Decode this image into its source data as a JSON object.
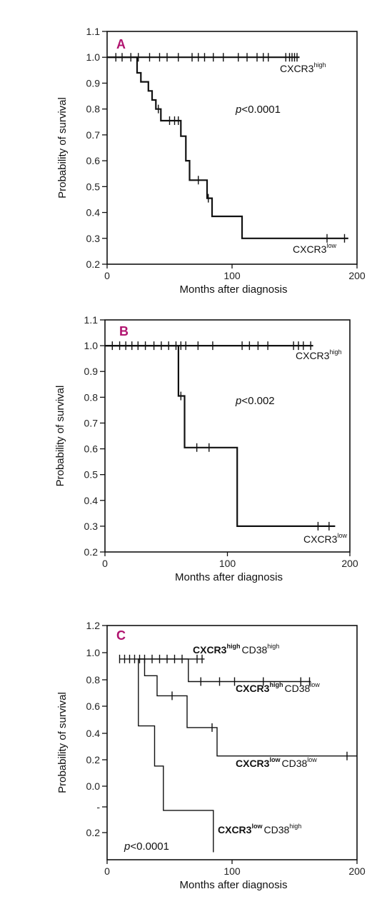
{
  "colors": {
    "letter": "#b0136f",
    "line": "#111111",
    "axis": "#111111"
  },
  "chart_data": [
    {
      "type": "line",
      "panel": "A",
      "xlabel": "Months after diagnosis",
      "ylabel": "Probability of survival",
      "xlim": [
        0,
        200
      ],
      "ylim": [
        0.2,
        1.1
      ],
      "xticks": [
        "0",
        "100",
        "200"
      ],
      "yticks": [
        "0.2",
        "0.3",
        "0.4",
        "0.5",
        "0.6",
        "0.7",
        "0.8",
        "0.9",
        "1.0",
        "1.1"
      ],
      "pvalue": {
        "italic": "p",
        "rest": "<0.0001"
      },
      "series": [
        {
          "label_main": "CXCR3",
          "label_sup": "high",
          "steps": [
            [
              0,
              1.0
            ],
            [
              154,
              1.0
            ]
          ],
          "censored": [
            [
              7,
              1.0
            ],
            [
              12,
              1.0
            ],
            [
              19,
              1.0
            ],
            [
              25,
              1.0
            ],
            [
              34,
              1.0
            ],
            [
              42,
              1.0
            ],
            [
              48,
              1.0
            ],
            [
              57,
              1.0
            ],
            [
              68,
              1.0
            ],
            [
              73,
              1.0
            ],
            [
              78,
              1.0
            ],
            [
              85,
              1.0
            ],
            [
              93,
              1.0
            ],
            [
              105,
              1.0
            ],
            [
              112,
              1.0
            ],
            [
              120,
              1.0
            ],
            [
              125,
              1.0
            ],
            [
              129,
              1.0
            ],
            [
              143,
              1.0
            ],
            [
              146,
              1.0
            ],
            [
              148,
              1.0
            ],
            [
              150,
              1.0
            ],
            [
              152,
              1.0
            ]
          ]
        },
        {
          "label_main": "CXCR3",
          "label_sup": "low",
          "steps": [
            [
              0,
              1.0
            ],
            [
              24,
              1.0
            ],
            [
              24,
              0.94
            ],
            [
              27,
              0.94
            ],
            [
              27,
              0.905
            ],
            [
              33,
              0.905
            ],
            [
              33,
              0.87
            ],
            [
              36,
              0.87
            ],
            [
              36,
              0.835
            ],
            [
              39,
              0.835
            ],
            [
              39,
              0.8
            ],
            [
              43,
              0.8
            ],
            [
              43,
              0.755
            ],
            [
              59,
              0.755
            ],
            [
              59,
              0.695
            ],
            [
              63,
              0.695
            ],
            [
              63,
              0.6
            ],
            [
              66,
              0.6
            ],
            [
              66,
              0.525
            ],
            [
              80,
              0.525
            ],
            [
              80,
              0.455
            ],
            [
              84,
              0.455
            ],
            [
              84,
              0.385
            ],
            [
              108,
              0.385
            ],
            [
              108,
              0.3
            ],
            [
              193,
              0.3
            ]
          ],
          "censored": [
            [
              41,
              0.8
            ],
            [
              50,
              0.755
            ],
            [
              54,
              0.755
            ],
            [
              57,
              0.755
            ],
            [
              73,
              0.525
            ],
            [
              81,
              0.455
            ],
            [
              176,
              0.3
            ],
            [
              190,
              0.3
            ]
          ]
        }
      ]
    },
    {
      "type": "line",
      "panel": "B",
      "xlabel": "Months after diagnosis",
      "ylabel": "Probability of survival",
      "xlim": [
        0,
        200
      ],
      "ylim": [
        0.2,
        1.1
      ],
      "xticks": [
        "0",
        "100",
        "200"
      ],
      "yticks": [
        "0.2",
        "0.3",
        "0.4",
        "0.5",
        "0.6",
        "0.7",
        "0.8",
        "0.9",
        "1.0",
        "1.1"
      ],
      "pvalue": {
        "italic": "p",
        "rest": "<0.002"
      },
      "series": [
        {
          "label_main": "CXCR3",
          "label_sup": "high",
          "steps": [
            [
              0,
              1.0
            ],
            [
              170,
              1.0
            ]
          ],
          "censored": [
            [
              6,
              1.0
            ],
            [
              12,
              1.0
            ],
            [
              17,
              1.0
            ],
            [
              22,
              1.0
            ],
            [
              27,
              1.0
            ],
            [
              33,
              1.0
            ],
            [
              40,
              1.0
            ],
            [
              46,
              1.0
            ],
            [
              52,
              1.0
            ],
            [
              58,
              1.0
            ],
            [
              62,
              1.0
            ],
            [
              66,
              1.0
            ],
            [
              76,
              1.0
            ],
            [
              88,
              1.0
            ],
            [
              112,
              1.0
            ],
            [
              118,
              1.0
            ],
            [
              125,
              1.0
            ],
            [
              133,
              1.0
            ],
            [
              154,
              1.0
            ],
            [
              158,
              1.0
            ],
            [
              162,
              1.0
            ],
            [
              168,
              1.0
            ]
          ]
        },
        {
          "label_main": "CXCR3",
          "label_sup": "low",
          "steps": [
            [
              0,
              1.0
            ],
            [
              60,
              1.0
            ],
            [
              60,
              0.805
            ],
            [
              65,
              0.805
            ],
            [
              65,
              0.605
            ],
            [
              108,
              0.605
            ],
            [
              108,
              0.3
            ],
            [
              188,
              0.3
            ]
          ],
          "censored": [
            [
              62,
              0.805
            ],
            [
              75,
              0.605
            ],
            [
              85,
              0.605
            ],
            [
              174,
              0.3
            ],
            [
              183,
              0.3
            ]
          ]
        }
      ]
    },
    {
      "type": "line",
      "panel": "C",
      "xlabel": "Months after diagnosis",
      "ylabel": "Probability of survival",
      "xlim": [
        0,
        200
      ],
      "ylim": [
        -0.2,
        1.2
      ],
      "xticks": [
        "0",
        "100",
        "200"
      ],
      "yticks": [
        "1.2",
        "1.0",
        "0.8",
        "0.6",
        "0.4",
        "0.2",
        "0.0",
        "-",
        "0.2"
      ],
      "pvalue": {
        "italic": "p",
        "rest": "<0.0001"
      },
      "series": [
        {
          "label_main": "CXCR3",
          "label_sup": "high",
          "label_second": "CD38",
          "label_second_sup": "high",
          "steps": [
            [
              10,
              1.0
            ],
            [
              78,
              1.0
            ]
          ],
          "censored": [
            [
              10,
              1.0
            ],
            [
              14,
              1.0
            ],
            [
              18,
              1.0
            ],
            [
              22,
              1.0
            ],
            [
              26,
              1.0
            ],
            [
              30,
              1.0
            ],
            [
              36,
              1.0
            ],
            [
              42,
              1.0
            ],
            [
              48,
              1.0
            ],
            [
              54,
              1.0
            ],
            [
              60,
              1.0
            ],
            [
              72,
              1.0
            ],
            [
              76,
              1.0
            ]
          ]
        },
        {
          "label_main": "CXCR3",
          "label_sup": "high",
          "label_second": "CD38",
          "label_second_sup": "low",
          "steps": [
            [
              25,
              1.0
            ],
            [
              65,
              1.0
            ],
            [
              65,
              0.865
            ],
            [
              163,
              0.865
            ]
          ],
          "censored": [
            [
              75,
              0.865
            ],
            [
              90,
              0.865
            ],
            [
              102,
              0.865
            ],
            [
              125,
              0.865
            ],
            [
              155,
              0.865
            ],
            [
              162,
              0.865
            ]
          ]
        },
        {
          "label_main": "CXCR3",
          "label_sup": "low",
          "label_second": "CD38",
          "label_second_sup": "low",
          "steps": [
            [
              25,
              1.0
            ],
            [
              30,
              1.0
            ],
            [
              30,
              0.9
            ],
            [
              40,
              0.9
            ],
            [
              40,
              0.78
            ],
            [
              64,
              0.78
            ],
            [
              64,
              0.59
            ],
            [
              88,
              0.59
            ],
            [
              88,
              0.42
            ],
            [
              200,
              0.42
            ]
          ],
          "censored": [
            [
              52,
              0.78
            ],
            [
              84,
              0.59
            ],
            [
              192,
              0.42
            ]
          ]
        },
        {
          "label_main": "CXCR3",
          "label_sup": "low",
          "label_second": "CD38",
          "label_second_sup": "high",
          "steps": [
            [
              25,
              1.0
            ],
            [
              25,
              0.6
            ],
            [
              38,
              0.6
            ],
            [
              38,
              0.36
            ],
            [
              45,
              0.36
            ],
            [
              45,
              0.095
            ],
            [
              85,
              0.095
            ],
            [
              85,
              -0.155
            ]
          ],
          "censored": []
        }
      ]
    }
  ]
}
